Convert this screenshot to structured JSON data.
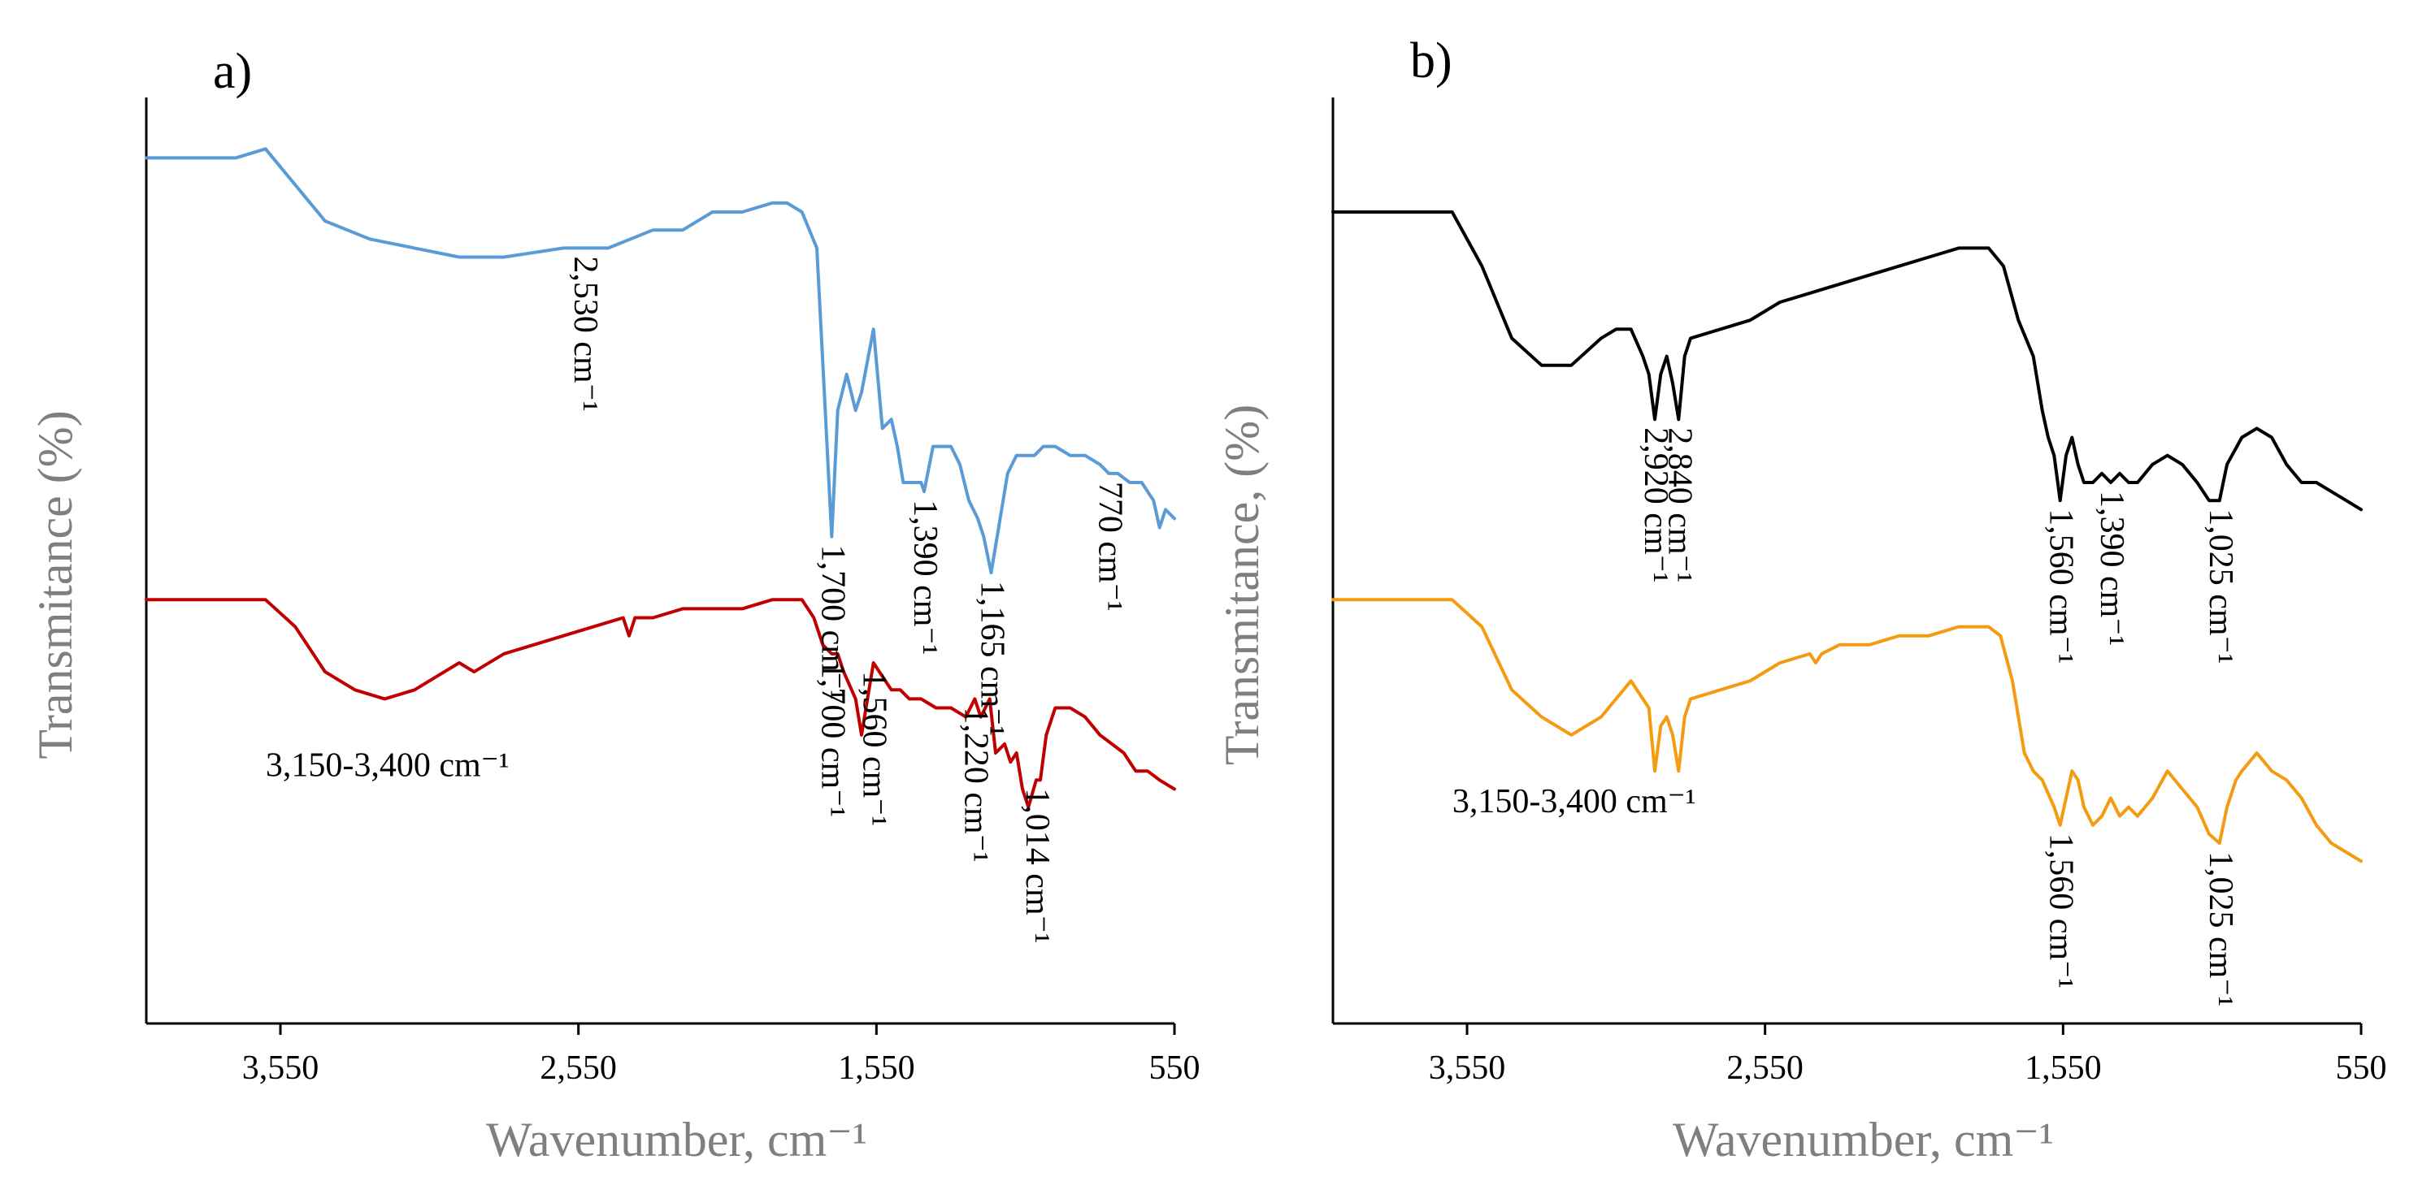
{
  "figure": {
    "panels": [
      "a)",
      "b)"
    ]
  },
  "chart_data": [
    {
      "type": "line",
      "panel_label": "a)",
      "title": "",
      "xlabel": "Wavenumber, cm⁻¹",
      "ylabel": "Transmitance (%)",
      "xlim": [
        4000,
        550
      ],
      "x_ticks": [
        "3,550",
        "2,550",
        "1,550",
        "550"
      ],
      "x_tick_values": [
        3550,
        2550,
        1550,
        550
      ],
      "ylim": [
        0,
        100
      ],
      "y_ticks": [],
      "grid": false,
      "series": [
        {
          "name": "upper spectrum",
          "color": "#5b9bd5",
          "x": [
            4000,
            3700,
            3600,
            3500,
            3400,
            3250,
            3100,
            2950,
            2800,
            2600,
            2450,
            2300,
            2200,
            2150,
            2100,
            2000,
            1900,
            1850,
            1800,
            1750,
            1725,
            1700,
            1680,
            1650,
            1620,
            1600,
            1560,
            1530,
            1500,
            1480,
            1460,
            1420,
            1400,
            1390,
            1360,
            1330,
            1300,
            1270,
            1240,
            1210,
            1190,
            1165,
            1140,
            1110,
            1080,
            1050,
            1020,
            990,
            950,
            900,
            850,
            800,
            770,
            740,
            700,
            660,
            620,
            600,
            580,
            550
          ],
          "y": [
            96,
            96,
            97,
            93,
            89,
            87,
            86,
            85,
            85,
            86,
            86,
            88,
            88,
            89,
            90,
            90,
            91,
            91,
            90,
            86,
            70,
            54,
            68,
            72,
            68,
            70,
            77,
            66,
            67,
            64,
            60,
            60,
            60,
            59,
            64,
            64,
            64,
            62,
            58,
            56,
            54,
            50,
            55,
            61,
            63,
            63,
            63,
            64,
            64,
            63,
            63,
            62,
            61,
            61,
            60,
            60,
            58,
            55,
            57,
            56
          ]
        },
        {
          "name": "lower spectrum",
          "color": "#c00000",
          "x": [
            4000,
            3700,
            3600,
            3500,
            3400,
            3300,
            3200,
            3100,
            3000,
            2950,
            2900,
            2800,
            2700,
            2600,
            2500,
            2400,
            2380,
            2360,
            2300,
            2200,
            2100,
            2000,
            1900,
            1850,
            1800,
            1760,
            1730,
            1700,
            1680,
            1660,
            1620,
            1600,
            1580,
            1560,
            1540,
            1500,
            1470,
            1440,
            1400,
            1350,
            1300,
            1250,
            1220,
            1200,
            1170,
            1150,
            1120,
            1100,
            1080,
            1060,
            1040,
            1014,
            1000,
            980,
            950,
            900,
            850,
            800,
            760,
            720,
            680,
            640,
            600,
            550
          ],
          "y": [
            47,
            47,
            47,
            44,
            39,
            37,
            36,
            37,
            39,
            40,
            39,
            41,
            42,
            43,
            44,
            45,
            43,
            45,
            45,
            46,
            46,
            46,
            47,
            47,
            47,
            45,
            42,
            41,
            41,
            39,
            36,
            32,
            36,
            40,
            39,
            37,
            37,
            36,
            36,
            35,
            35,
            34,
            36,
            34,
            36,
            30,
            31,
            29,
            30,
            26,
            24,
            27,
            27,
            32,
            35,
            35,
            34,
            32,
            31,
            30,
            28,
            28,
            27,
            26
          ]
        }
      ],
      "annotations": [
        {
          "text": "2,530 cm⁻¹",
          "x": 2530,
          "y": 86,
          "rotated": true
        },
        {
          "text": "1,700 cm⁻¹",
          "x": 1700,
          "y": 54,
          "rotated": true
        },
        {
          "text": "1,390 cm⁻¹",
          "x": 1390,
          "y": 59,
          "rotated": true
        },
        {
          "text": "1,165 cm⁻¹",
          "x": 1165,
          "y": 50,
          "rotated": true
        },
        {
          "text": "770 cm⁻¹",
          "x": 770,
          "y": 61,
          "rotated": true
        },
        {
          "text": "3,150-3,400 cm⁻¹",
          "x": 3300,
          "y": 36,
          "rotated": false
        },
        {
          "text": "1,700 cm⁻¹",
          "x": 1700,
          "y": 41,
          "rotated": true
        },
        {
          "text": "1,560 cm⁻¹",
          "x": 1560,
          "y": 40,
          "rotated": true
        },
        {
          "text": "1,220 cm⁻¹",
          "x": 1220,
          "y": 36,
          "rotated": true
        },
        {
          "text": "1,014 cm⁻¹",
          "x": 1014,
          "y": 27,
          "rotated": true
        }
      ]
    },
    {
      "type": "line",
      "panel_label": "b)",
      "title": "",
      "xlabel": "Wavenumber, cm⁻¹",
      "ylabel": "Transmitance, (%)",
      "xlim": [
        4000,
        550
      ],
      "x_ticks": [
        "3,550",
        "2,550",
        "1,550",
        "550"
      ],
      "x_tick_values": [
        3550,
        2550,
        1550,
        550
      ],
      "ylim": [
        0,
        100
      ],
      "y_ticks": [],
      "grid": false,
      "series": [
        {
          "name": "upper spectrum",
          "color": "#000000",
          "x": [
            4000,
            3700,
            3600,
            3500,
            3400,
            3300,
            3200,
            3100,
            3050,
            3000,
            2960,
            2940,
            2920,
            2900,
            2880,
            2860,
            2840,
            2820,
            2800,
            2700,
            2600,
            2500,
            2400,
            2300,
            2200,
            2100,
            2000,
            1900,
            1850,
            1800,
            1750,
            1700,
            1650,
            1620,
            1600,
            1580,
            1560,
            1540,
            1520,
            1500,
            1480,
            1450,
            1420,
            1390,
            1360,
            1330,
            1300,
            1250,
            1200,
            1150,
            1100,
            1060,
            1025,
            1000,
            950,
            900,
            850,
            800,
            750,
            700,
            650,
            600,
            550
          ],
          "y": [
            90,
            90,
            90,
            84,
            76,
            73,
            73,
            76,
            77,
            77,
            74,
            72,
            67,
            72,
            74,
            71,
            67,
            74,
            76,
            77,
            78,
            80,
            81,
            82,
            83,
            84,
            85,
            86,
            86,
            86,
            84,
            78,
            74,
            68,
            65,
            63,
            58,
            63,
            65,
            62,
            60,
            60,
            61,
            60,
            61,
            60,
            60,
            62,
            63,
            62,
            60,
            58,
            58,
            62,
            65,
            66,
            65,
            62,
            60,
            60,
            59,
            58,
            57
          ]
        },
        {
          "name": "lower spectrum",
          "color": "#f39c12",
          "x": [
            4000,
            3700,
            3600,
            3500,
            3400,
            3300,
            3200,
            3100,
            3050,
            3000,
            2960,
            2940,
            2920,
            2900,
            2880,
            2860,
            2840,
            2820,
            2800,
            2700,
            2600,
            2500,
            2400,
            2380,
            2360,
            2300,
            2200,
            2100,
            2000,
            1900,
            1850,
            1800,
            1760,
            1720,
            1680,
            1650,
            1620,
            1580,
            1560,
            1540,
            1520,
            1500,
            1480,
            1450,
            1420,
            1390,
            1360,
            1330,
            1300,
            1250,
            1200,
            1150,
            1100,
            1060,
            1025,
            1000,
            970,
            950,
            900,
            850,
            800,
            750,
            700,
            650,
            600,
            550
          ],
          "y": [
            47,
            47,
            47,
            44,
            37,
            34,
            32,
            34,
            36,
            38,
            36,
            35,
            28,
            33,
            34,
            32,
            28,
            34,
            36,
            37,
            38,
            40,
            41,
            40,
            41,
            42,
            42,
            43,
            43,
            44,
            44,
            44,
            43,
            38,
            30,
            28,
            27,
            24,
            22,
            25,
            28,
            27,
            24,
            22,
            23,
            25,
            23,
            24,
            23,
            25,
            28,
            26,
            24,
            21,
            20,
            24,
            27,
            28,
            30,
            28,
            27,
            25,
            22,
            20,
            19,
            18
          ]
        }
      ],
      "annotations": [
        {
          "text": "2,920 cm⁻¹",
          "x": 2920,
          "y": 67,
          "rotated": true
        },
        {
          "text": "2,840 cm⁻¹",
          "x": 2840,
          "y": 67,
          "rotated": true
        },
        {
          "text": "1,560 cm⁻¹",
          "x": 1560,
          "y": 58,
          "rotated": true
        },
        {
          "text": "1,390 cm⁻¹",
          "x": 1390,
          "y": 60,
          "rotated": true
        },
        {
          "text": "1,025 cm⁻¹",
          "x": 1025,
          "y": 58,
          "rotated": true
        },
        {
          "text": "3,150-3,400 cm⁻¹",
          "x": 3300,
          "y": 32,
          "rotated": false
        },
        {
          "text": "1,560 cm⁻¹",
          "x": 1560,
          "y": 22,
          "rotated": true
        },
        {
          "text": "1,025 cm⁻¹",
          "x": 1025,
          "y": 20,
          "rotated": true
        }
      ]
    }
  ]
}
